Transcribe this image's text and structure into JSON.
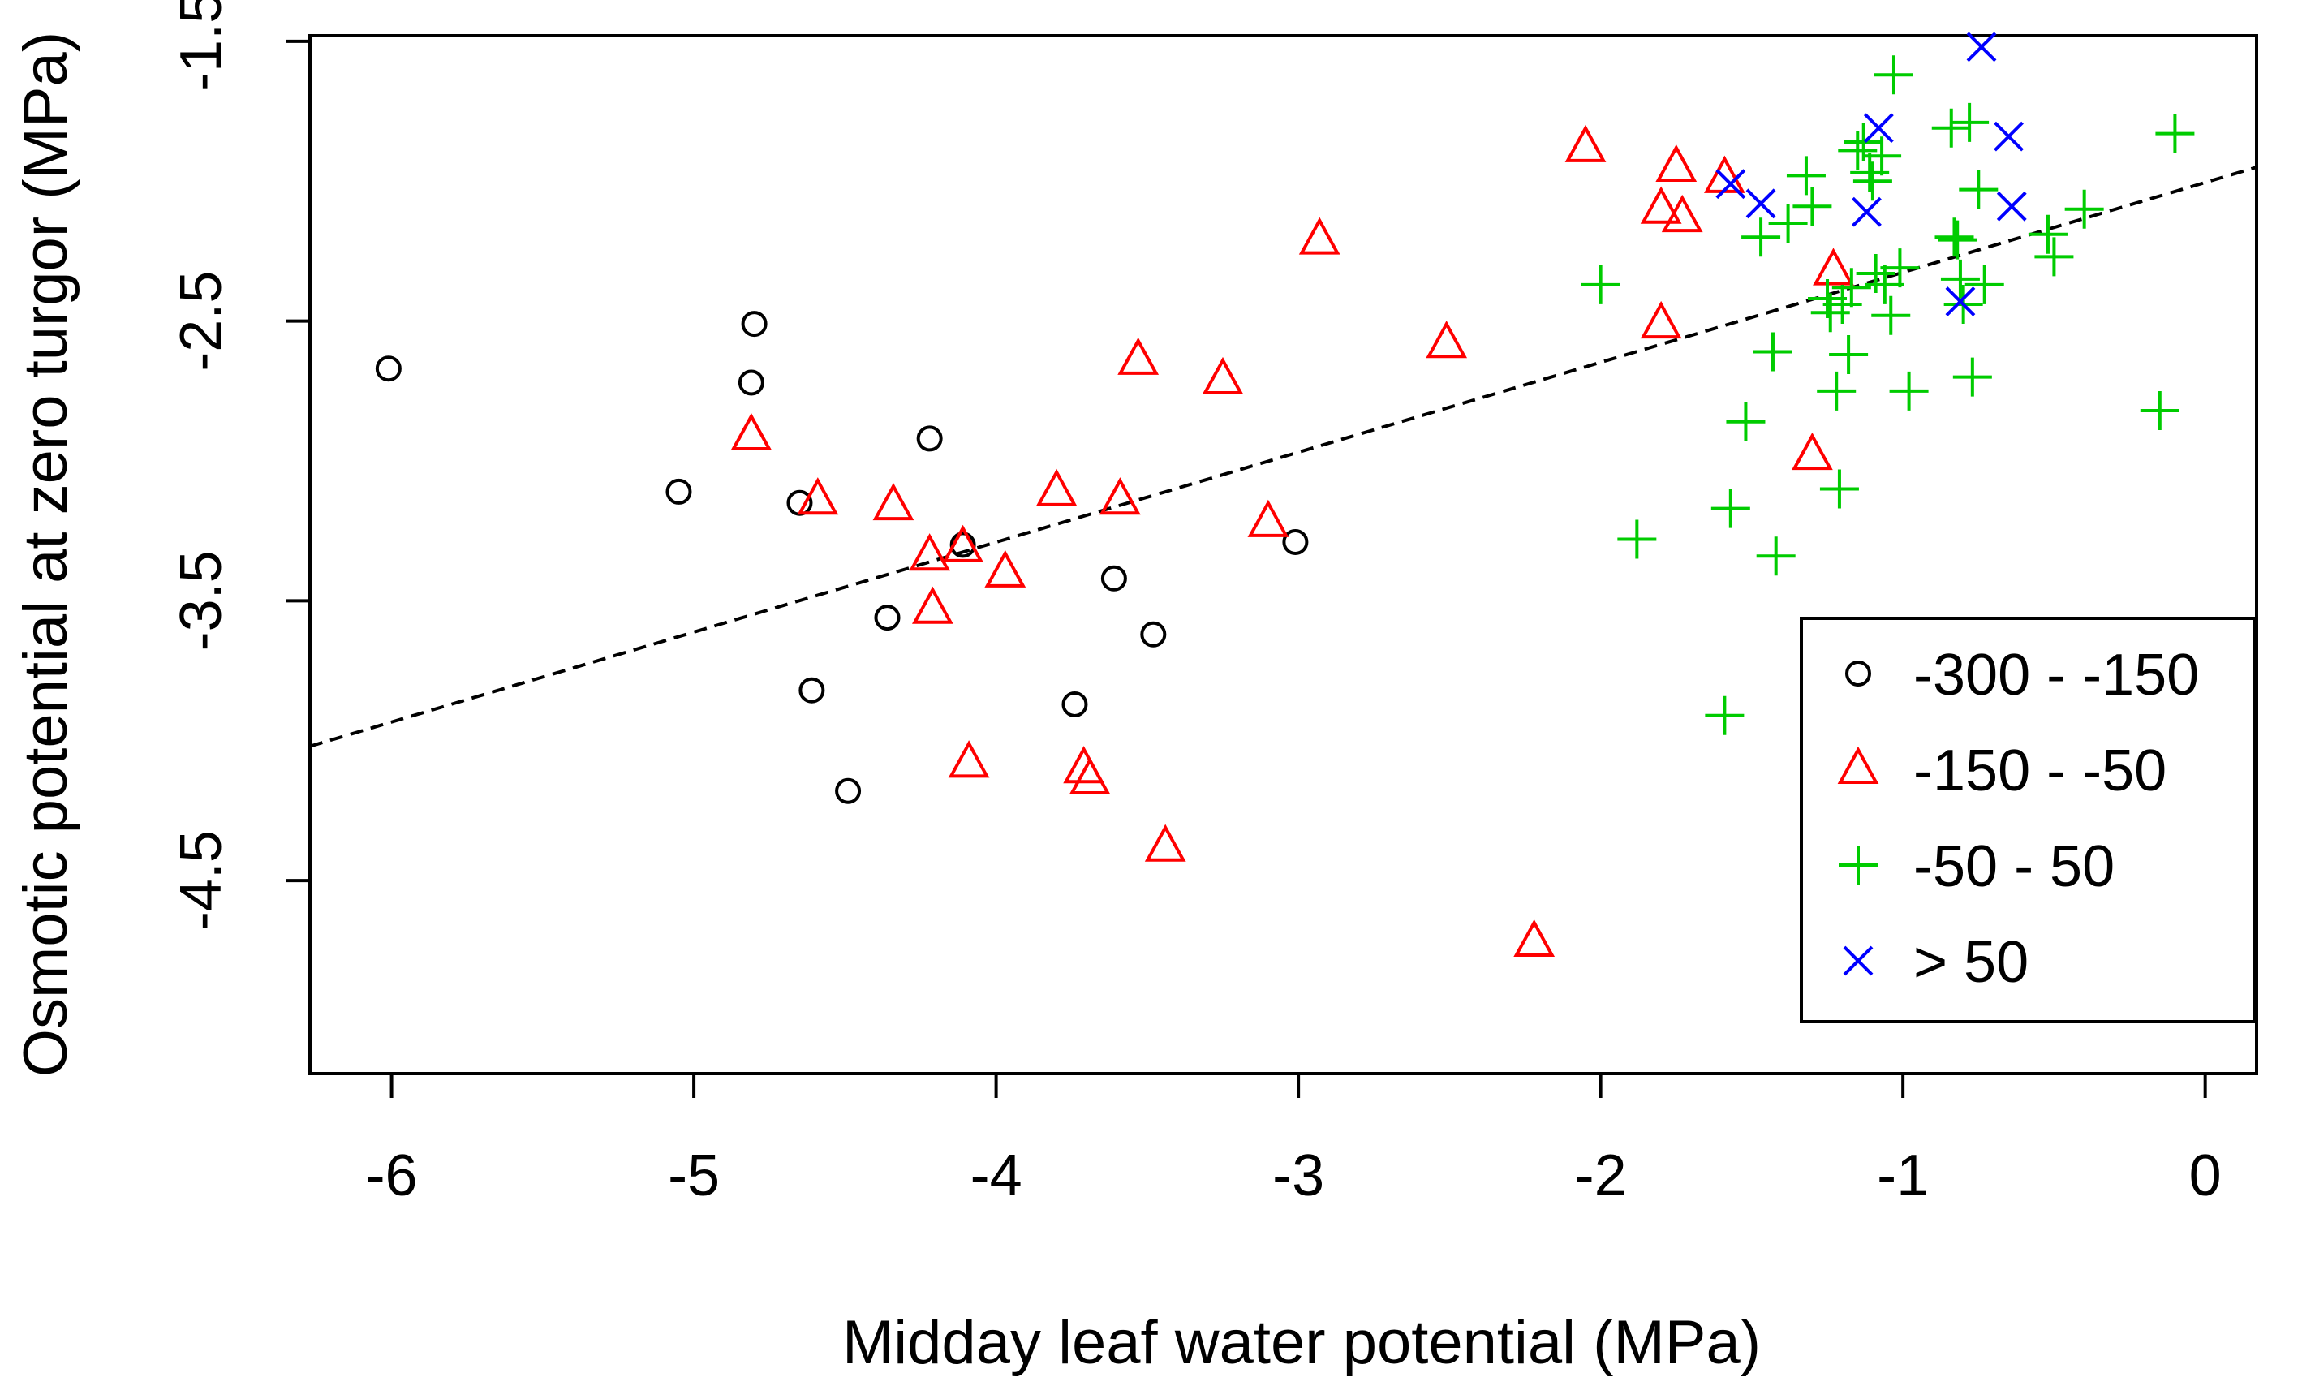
{
  "chart_data": {
    "type": "scatter",
    "title": "",
    "xlabel": "Midday leaf water potential  (MPa)",
    "ylabel": "Osmotic potential at zero turgor (MPa)",
    "xlim": [
      -6.27,
      0.17
    ],
    "ylim": [
      -5.19,
      -1.48
    ],
    "x_ticks": [
      -6,
      -5,
      -4,
      -3,
      -2,
      -1,
      0
    ],
    "x_tick_labels": [
      "-6",
      "-5",
      "-4",
      "-3",
      "-2",
      "-1",
      "0"
    ],
    "y_ticks": [
      -1.5,
      -2.5,
      -3.5,
      -4.5
    ],
    "y_tick_labels": [
      "-1.5",
      "-2.5",
      "-3.5",
      "-4.5"
    ],
    "grid": false,
    "legend_position": "bottom-right",
    "trendline": {
      "style": "dashed",
      "color": "#000000",
      "x": [
        -6.27,
        0.17
      ],
      "y": [
        -4.02,
        -1.95
      ]
    },
    "series": [
      {
        "name": "-300 - -150",
        "marker": "circle",
        "color": "#000000",
        "x": [
          -6.01,
          -5.05,
          -4.8,
          -4.81,
          -4.65,
          -4.61,
          -4.49,
          -4.36,
          -4.22,
          -4.11,
          -3.74,
          -3.61,
          -3.48,
          -3.01
        ],
        "y": [
          -2.67,
          -3.11,
          -2.51,
          -2.72,
          -3.15,
          -3.82,
          -4.18,
          -3.56,
          -2.92,
          -3.3,
          -3.87,
          -3.42,
          -3.62,
          -3.29
        ]
      },
      {
        "name": "-150 - -50",
        "marker": "triangle",
        "color": "#ff0000",
        "x": [
          -4.81,
          -4.59,
          -4.34,
          -4.22,
          -4.21,
          -4.11,
          -4.09,
          -3.97,
          -3.8,
          -3.71,
          -3.69,
          -3.59,
          -3.53,
          -3.44,
          -3.25,
          -3.1,
          -2.93,
          -2.51,
          -2.22,
          -2.05,
          -1.8,
          -1.8,
          -1.75,
          -1.73,
          -1.59,
          -1.3,
          -1.23
        ],
        "y": [
          -2.91,
          -3.14,
          -3.16,
          -3.34,
          -3.53,
          -3.31,
          -4.08,
          -3.4,
          -3.11,
          -4.1,
          -4.14,
          -3.14,
          -2.64,
          -4.38,
          -2.71,
          -3.22,
          -2.21,
          -2.58,
          -4.72,
          -1.88,
          -2.1,
          -2.51,
          -1.95,
          -2.13,
          -1.99,
          -2.98,
          -2.32
        ]
      },
      {
        "name": "-50 - 50",
        "marker": "plus",
        "color": "#00cc00",
        "x": [
          -2.0,
          -1.88,
          -1.59,
          -1.57,
          -1.52,
          -1.47,
          -1.43,
          -1.42,
          -1.38,
          -1.32,
          -1.3,
          -1.25,
          -1.24,
          -1.22,
          -1.21,
          -1.2,
          -1.18,
          -1.17,
          -1.15,
          -1.13,
          -1.11,
          -1.1,
          -1.09,
          -1.07,
          -1.06,
          -1.04,
          -1.03,
          -1.01,
          -0.98,
          -0.84,
          -0.83,
          -0.82,
          -0.81,
          -0.8,
          -0.78,
          -0.77,
          -0.75,
          -0.73,
          -0.52,
          -0.5,
          -0.4,
          -0.15,
          -0.1
        ],
        "y": [
          -2.37,
          -3.28,
          -3.91,
          -3.17,
          -2.86,
          -2.2,
          -2.61,
          -3.34,
          -2.15,
          -1.98,
          -2.09,
          -2.42,
          -2.47,
          -2.75,
          -3.1,
          -2.44,
          -2.62,
          -2.38,
          -1.89,
          -1.86,
          -1.97,
          -2.0,
          -2.33,
          -1.91,
          -2.37,
          -2.48,
          -1.62,
          -2.31,
          -2.75,
          -1.81,
          -2.2,
          -2.21,
          -2.35,
          -2.44,
          -1.79,
          -2.7,
          -2.03,
          -2.37,
          -2.19,
          -2.27,
          -2.1,
          -2.82,
          -1.83
        ]
      },
      {
        "name": "> 50",
        "marker": "cross",
        "color": "#0000ff",
        "x": [
          -1.57,
          -1.47,
          -1.12,
          -1.08,
          -0.81,
          -0.74,
          -0.65,
          -0.64
        ],
        "y": [
          -2.01,
          -2.08,
          -2.11,
          -1.81,
          -2.43,
          -1.52,
          -1.84,
          -2.09
        ]
      }
    ]
  }
}
